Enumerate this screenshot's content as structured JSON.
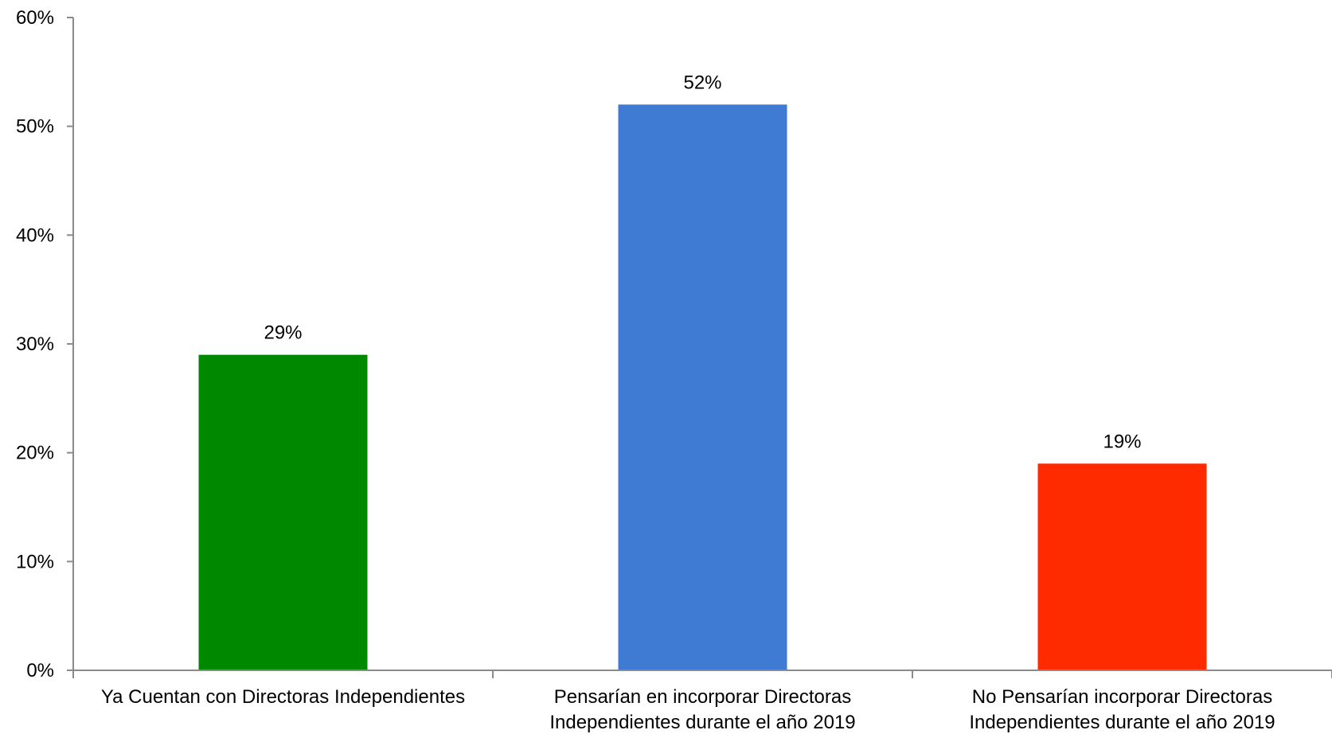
{
  "chart_data": {
    "type": "bar",
    "categories": [
      [
        "Ya Cuentan con Directoras Independientes"
      ],
      [
        "Pensarían en incorporar Directoras",
        "Independientes durante el año 2019"
      ],
      [
        "No Pensarían incorporar Directoras",
        "Independientes durante el año 2019"
      ]
    ],
    "values": [
      29,
      52,
      19
    ],
    "data_labels": [
      "29%",
      "52%",
      "19%"
    ],
    "colors": [
      "#008800",
      "#3f7bd3",
      "#fe2a00"
    ],
    "ylim": [
      0,
      60
    ],
    "yticks": [
      0,
      10,
      20,
      30,
      40,
      50,
      60
    ],
    "ytick_labels": [
      "0%",
      "10%",
      "20%",
      "30%",
      "40%",
      "50%",
      "60%"
    ],
    "grid": false,
    "legend": "none",
    "title": "",
    "xlabel": "",
    "ylabel": ""
  }
}
